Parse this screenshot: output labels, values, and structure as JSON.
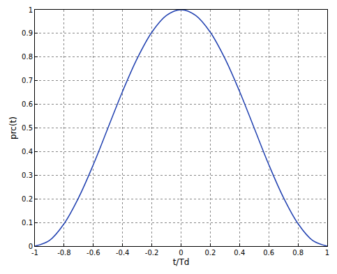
{
  "chart_data": {
    "type": "line",
    "x_label": "t/Td",
    "y_label": "prc(t)",
    "x": [
      -1,
      -0.9,
      -0.8,
      -0.7,
      -0.6,
      -0.5,
      -0.4,
      -0.3,
      -0.2,
      -0.1,
      0,
      0.1,
      0.2,
      0.3,
      0.4,
      0.5,
      0.6,
      0.7,
      0.8,
      0.9,
      1
    ],
    "values": [
      0,
      0.024,
      0.095,
      0.206,
      0.345,
      0.5,
      0.655,
      0.794,
      0.905,
      0.976,
      1,
      0.976,
      0.905,
      0.794,
      0.655,
      0.5,
      0.345,
      0.206,
      0.095,
      0.024,
      0
    ],
    "color": "#2040b0",
    "line_style": "solid",
    "xlim": [
      -1,
      1
    ],
    "xticks": [
      -1,
      -0.8,
      -0.6,
      -0.4,
      -0.2,
      0,
      0.2,
      0.4,
      0.6,
      0.8,
      1
    ],
    "ylim": [
      0,
      1
    ],
    "yticks": [
      0,
      0.1,
      0.2,
      0.3,
      0.4,
      0.5,
      0.6,
      0.7,
      0.8,
      0.9,
      1
    ],
    "grid": true
  }
}
